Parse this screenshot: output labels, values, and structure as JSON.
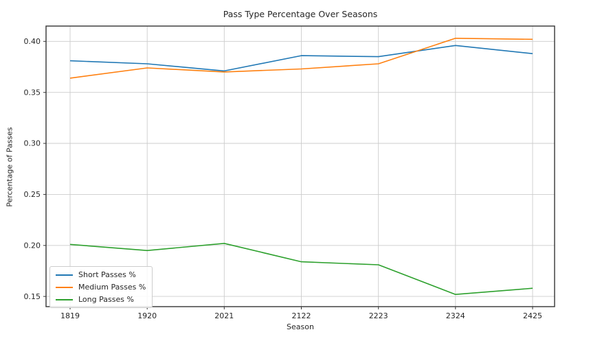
{
  "chart_data": {
    "type": "line",
    "title": "Pass Type Percentage Over Seasons",
    "xlabel": "Season",
    "ylabel": "Percentage of Passes",
    "categories": [
      "1819",
      "1920",
      "2021",
      "2122",
      "2223",
      "2324",
      "2425"
    ],
    "series": [
      {
        "name": "Short Passes %",
        "color": "#1f77b4",
        "values": [
          0.381,
          0.378,
          0.371,
          0.386,
          0.385,
          0.396,
          0.388
        ]
      },
      {
        "name": "Medium Passes %",
        "color": "#ff7f0e",
        "values": [
          0.364,
          0.374,
          0.37,
          0.373,
          0.378,
          0.403,
          0.402
        ]
      },
      {
        "name": "Long Passes %",
        "color": "#2ca02c",
        "values": [
          0.201,
          0.195,
          0.202,
          0.184,
          0.181,
          0.152,
          0.158
        ]
      }
    ],
    "ylim": [
      0.14,
      0.415
    ],
    "yticks": [
      0.15,
      0.2,
      0.25,
      0.3,
      0.35,
      0.4
    ],
    "ytick_format_decimals": 2,
    "grid": true,
    "legend_position": "lower left",
    "colors": {
      "grid": "#cccccc",
      "spine": "#333333",
      "text": "#262626"
    }
  }
}
